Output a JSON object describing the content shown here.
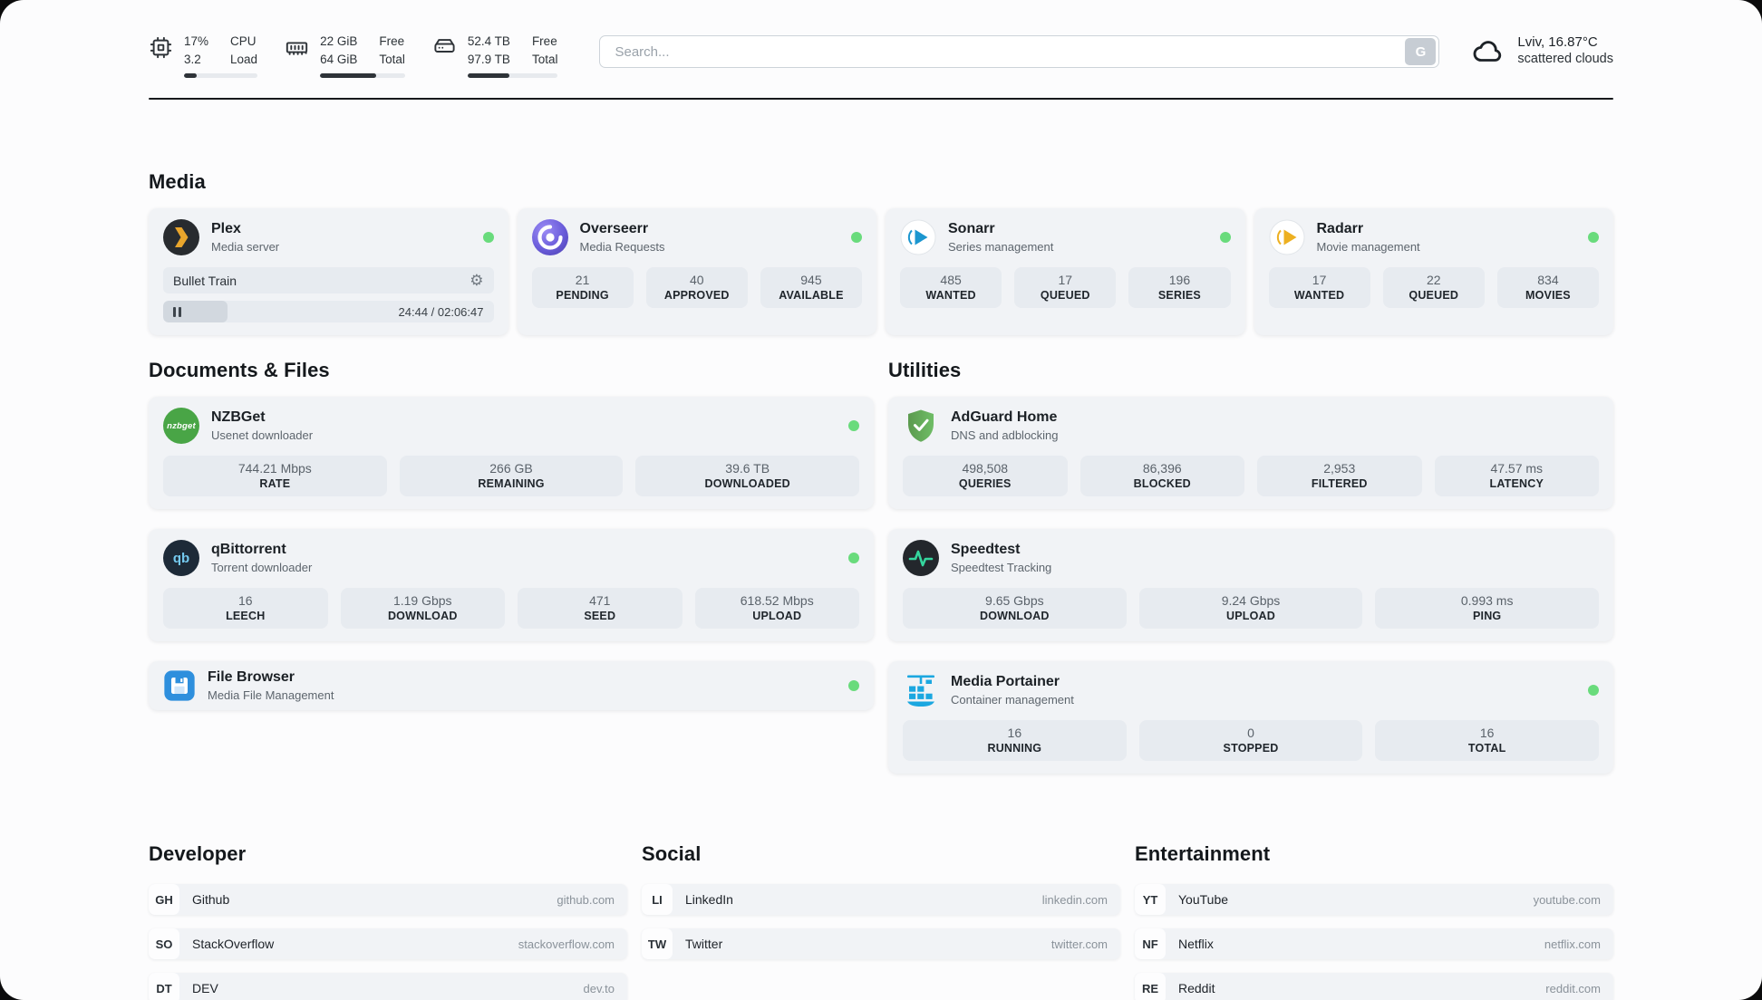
{
  "colors": {
    "status_online": "#69db7c"
  },
  "header": {
    "cpu": {
      "usage": "17%",
      "load": "3.2",
      "label_top": "CPU",
      "label_bottom": "Load",
      "progress_pct": 17
    },
    "memory": {
      "free": "22 GiB",
      "total": "64 GiB",
      "label_top": "Free",
      "label_bottom": "Total",
      "progress_pct": 66
    },
    "disk": {
      "free": "52.4 TB",
      "total": "97.9 TB",
      "label_top": "Free",
      "label_bottom": "Total",
      "progress_pct": 46
    },
    "search": {
      "placeholder": "Search...",
      "engine_button": "G"
    },
    "weather": {
      "location": "Lviv, 16.87°C",
      "condition": "scattered clouds"
    }
  },
  "sections": {
    "media": {
      "title": "Media",
      "cards": [
        {
          "name": "Plex",
          "subtitle": "Media server",
          "player": {
            "title": "Bullet Train",
            "time": "24:44 / 02:06:47",
            "progress_pct": 19.5
          }
        },
        {
          "name": "Overseerr",
          "subtitle": "Media Requests",
          "stats": [
            {
              "value": "21",
              "label": "PENDING"
            },
            {
              "value": "40",
              "label": "APPROVED"
            },
            {
              "value": "945",
              "label": "AVAILABLE"
            }
          ]
        },
        {
          "name": "Sonarr",
          "subtitle": "Series management",
          "stats": [
            {
              "value": "485",
              "label": "WANTED"
            },
            {
              "value": "17",
              "label": "QUEUED"
            },
            {
              "value": "196",
              "label": "SERIES"
            }
          ]
        },
        {
          "name": "Radarr",
          "subtitle": "Movie management",
          "stats": [
            {
              "value": "17",
              "label": "WANTED"
            },
            {
              "value": "22",
              "label": "QUEUED"
            },
            {
              "value": "834",
              "label": "MOVIES"
            }
          ]
        }
      ]
    },
    "documents": {
      "title": "Documents & Files",
      "cards": [
        {
          "name": "NZBGet",
          "subtitle": "Usenet downloader",
          "icon_text": "nzbget",
          "stats": [
            {
              "value": "744.21 Mbps",
              "label": "RATE"
            },
            {
              "value": "266 GB",
              "label": "REMAINING"
            },
            {
              "value": "39.6 TB",
              "label": "DOWNLOADED"
            }
          ]
        },
        {
          "name": "qBittorrent",
          "subtitle": "Torrent downloader",
          "icon_text": "qb",
          "stats": [
            {
              "value": "16",
              "label": "LEECH"
            },
            {
              "value": "1.19 Gbps",
              "label": "DOWNLOAD"
            },
            {
              "value": "471",
              "label": "SEED"
            },
            {
              "value": "618.52 Mbps",
              "label": "UPLOAD"
            }
          ]
        },
        {
          "name": "File Browser",
          "subtitle": "Media File Management"
        }
      ]
    },
    "utilities": {
      "title": "Utilities",
      "cards": [
        {
          "name": "AdGuard Home",
          "subtitle": "DNS and adblocking",
          "stats": [
            {
              "value": "498,508",
              "label": "QUERIES"
            },
            {
              "value": "86,396",
              "label": "BLOCKED"
            },
            {
              "value": "2,953",
              "label": "FILTERED"
            },
            {
              "value": "47.57 ms",
              "label": "LATENCY"
            }
          ]
        },
        {
          "name": "Speedtest",
          "subtitle": "Speedtest Tracking",
          "stats": [
            {
              "value": "9.65 Gbps",
              "label": "DOWNLOAD"
            },
            {
              "value": "9.24 Gbps",
              "label": "UPLOAD"
            },
            {
              "value": "0.993 ms",
              "label": "PING"
            }
          ]
        },
        {
          "name": "Media Portainer",
          "subtitle": "Container management",
          "stats": [
            {
              "value": "16",
              "label": "RUNNING"
            },
            {
              "value": "0",
              "label": "STOPPED"
            },
            {
              "value": "16",
              "label": "TOTAL"
            }
          ]
        }
      ]
    },
    "bookmarks": [
      {
        "title": "Developer",
        "items": [
          {
            "abbr": "GH",
            "name": "Github",
            "url": "github.com"
          },
          {
            "abbr": "SO",
            "name": "StackOverflow",
            "url": "stackoverflow.com"
          },
          {
            "abbr": "DT",
            "name": "DEV",
            "url": "dev.to"
          }
        ]
      },
      {
        "title": "Social",
        "items": [
          {
            "abbr": "LI",
            "name": "LinkedIn",
            "url": "linkedin.com"
          },
          {
            "abbr": "TW",
            "name": "Twitter",
            "url": "twitter.com"
          }
        ]
      },
      {
        "title": "Entertainment",
        "items": [
          {
            "abbr": "YT",
            "name": "YouTube",
            "url": "youtube.com"
          },
          {
            "abbr": "NF",
            "name": "Netflix",
            "url": "netflix.com"
          },
          {
            "abbr": "RE",
            "name": "Reddit",
            "url": "reddit.com"
          }
        ]
      }
    ]
  }
}
